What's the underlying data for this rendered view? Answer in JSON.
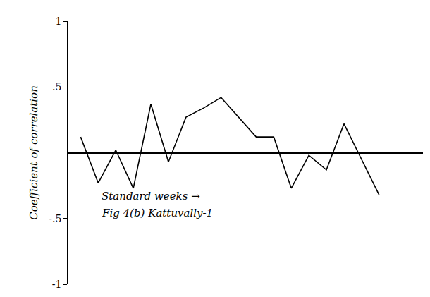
{
  "chart_data": {
    "type": "line",
    "ylabel": "Coefficient of correlation",
    "xlabel": "Standard weeks →",
    "annotations": [
      "Fig 4(b) Kattuvally-1"
    ],
    "x": [
      1,
      2,
      3,
      4,
      5,
      6,
      7,
      8,
      9,
      10,
      11,
      12,
      13,
      14,
      15,
      16,
      17,
      18
    ],
    "values": [
      0.12,
      -0.23,
      0.02,
      -0.27,
      0.37,
      -0.07,
      0.27,
      0.34,
      0.42,
      0.27,
      0.12,
      0.12,
      -0.27,
      -0.02,
      -0.13,
      0.22,
      -0.05,
      -0.32
    ],
    "color": "#000000",
    "xlim": [
      0.3,
      20.5
    ],
    "xticks": [],
    "ylim": [
      -1,
      1
    ],
    "yticks": [
      1,
      {
        "value": 0.5,
        "label": ".5"
      },
      {
        "value": -0.5,
        "label": "-.5"
      },
      -1
    ],
    "tick_labels": "y",
    "grid": false
  }
}
